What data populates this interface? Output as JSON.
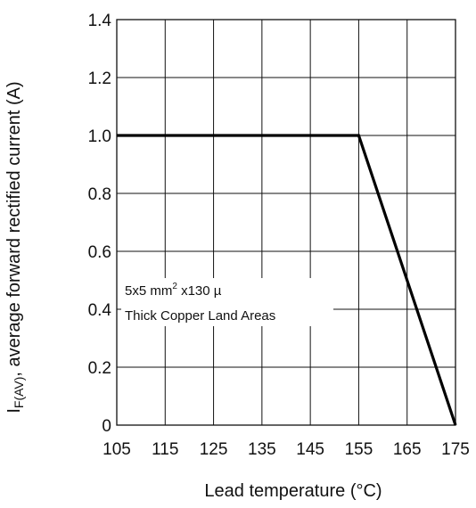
{
  "chart_data": {
    "type": "line",
    "title": "",
    "xlabel": "Lead temperature (°C)",
    "ylabel": {
      "prefix": "I",
      "subscript": "F(AV)",
      "rest": ", average forward rectified current (A)"
    },
    "xlim": [
      105,
      175
    ],
    "ylim": [
      0,
      1.4
    ],
    "x_ticks": [
      105,
      115,
      125,
      135,
      145,
      155,
      165,
      175
    ],
    "y_ticks": [
      0,
      0.2,
      0.4,
      0.6,
      0.8,
      1.0,
      1.2,
      1.4
    ],
    "y_tick_labels": [
      "0",
      "0.2",
      "0.4",
      "0.6",
      "0.8",
      "1.0",
      "1.2",
      "1.4"
    ],
    "grid": true,
    "series": [
      {
        "x": [
          105,
          155,
          175
        ],
        "y": [
          1.0,
          1.0,
          0
        ],
        "color": "#000000"
      }
    ],
    "annotation": {
      "line1_prefix": "5x5 mm",
      "line1_superscript": "2",
      "line1_suffix": " x130 µ",
      "line2": "Thick Copper Land Areas"
    }
  }
}
